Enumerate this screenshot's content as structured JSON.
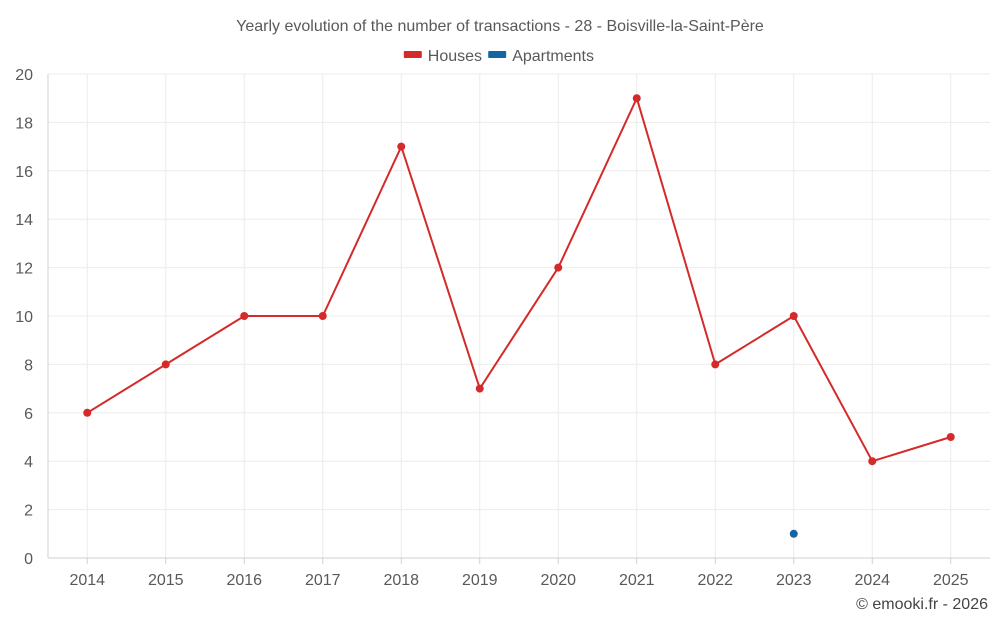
{
  "chart_data": {
    "type": "line",
    "title": "Yearly evolution of the number of transactions - 28 - Boisville-la-Saint-Père",
    "xlabel": "",
    "ylabel": "",
    "categories": [
      "2014",
      "2015",
      "2016",
      "2017",
      "2018",
      "2019",
      "2020",
      "2021",
      "2022",
      "2023",
      "2024",
      "2025"
    ],
    "ylim": [
      0,
      20
    ],
    "yticks": [
      0,
      2,
      4,
      6,
      8,
      10,
      12,
      14,
      16,
      18,
      20
    ],
    "grid": true,
    "legend_position": "top-center",
    "series": [
      {
        "name": "Houses",
        "color": "#d42a2a",
        "values": [
          6,
          8,
          10,
          10,
          17,
          7,
          12,
          19,
          8,
          10,
          4,
          5
        ]
      },
      {
        "name": "Apartments",
        "color": "#1565a0",
        "values": [
          null,
          null,
          null,
          null,
          null,
          null,
          null,
          null,
          null,
          1,
          null,
          null
        ]
      }
    ]
  },
  "credit": "© emooki.fr - 2026"
}
